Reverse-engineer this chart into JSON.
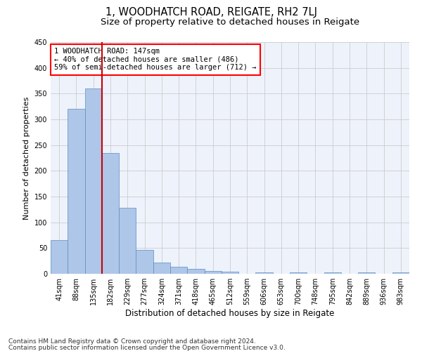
{
  "title": "1, WOODHATCH ROAD, REIGATE, RH2 7LJ",
  "subtitle": "Size of property relative to detached houses in Reigate",
  "xlabel": "Distribution of detached houses by size in Reigate",
  "ylabel": "Number of detached properties",
  "bar_values": [
    65,
    320,
    360,
    235,
    128,
    46,
    22,
    14,
    9,
    5,
    4,
    0,
    3,
    0,
    3,
    0,
    3,
    0,
    3,
    0,
    3
  ],
  "bar_labels": [
    "41sqm",
    "88sqm",
    "135sqm",
    "182sqm",
    "229sqm",
    "277sqm",
    "324sqm",
    "371sqm",
    "418sqm",
    "465sqm",
    "512sqm",
    "559sqm",
    "606sqm",
    "653sqm",
    "700sqm",
    "748sqm",
    "795sqm",
    "842sqm",
    "889sqm",
    "936sqm",
    "983sqm"
  ],
  "bar_color": "#aec6e8",
  "bar_edge_color": "#5a8fc2",
  "annotation_line1": "1 WOODHATCH ROAD: 147sqm",
  "annotation_line2": "← 40% of detached houses are smaller (486)",
  "annotation_line3": "59% of semi-detached houses are larger (712) →",
  "vline_color": "#cc0000",
  "ylim": [
    0,
    450
  ],
  "yticks": [
    0,
    50,
    100,
    150,
    200,
    250,
    300,
    350,
    400,
    450
  ],
  "footnote1": "Contains HM Land Registry data © Crown copyright and database right 2024.",
  "footnote2": "Contains public sector information licensed under the Open Government Licence v3.0.",
  "bg_color": "#eef2fb",
  "grid_color": "#cccccc",
  "annotation_fontsize": 7.5,
  "title_fontsize": 10.5,
  "subtitle_fontsize": 9.5,
  "xlabel_fontsize": 8.5,
  "ylabel_fontsize": 8.0,
  "tick_fontsize": 7.0,
  "footnote_fontsize": 6.5
}
